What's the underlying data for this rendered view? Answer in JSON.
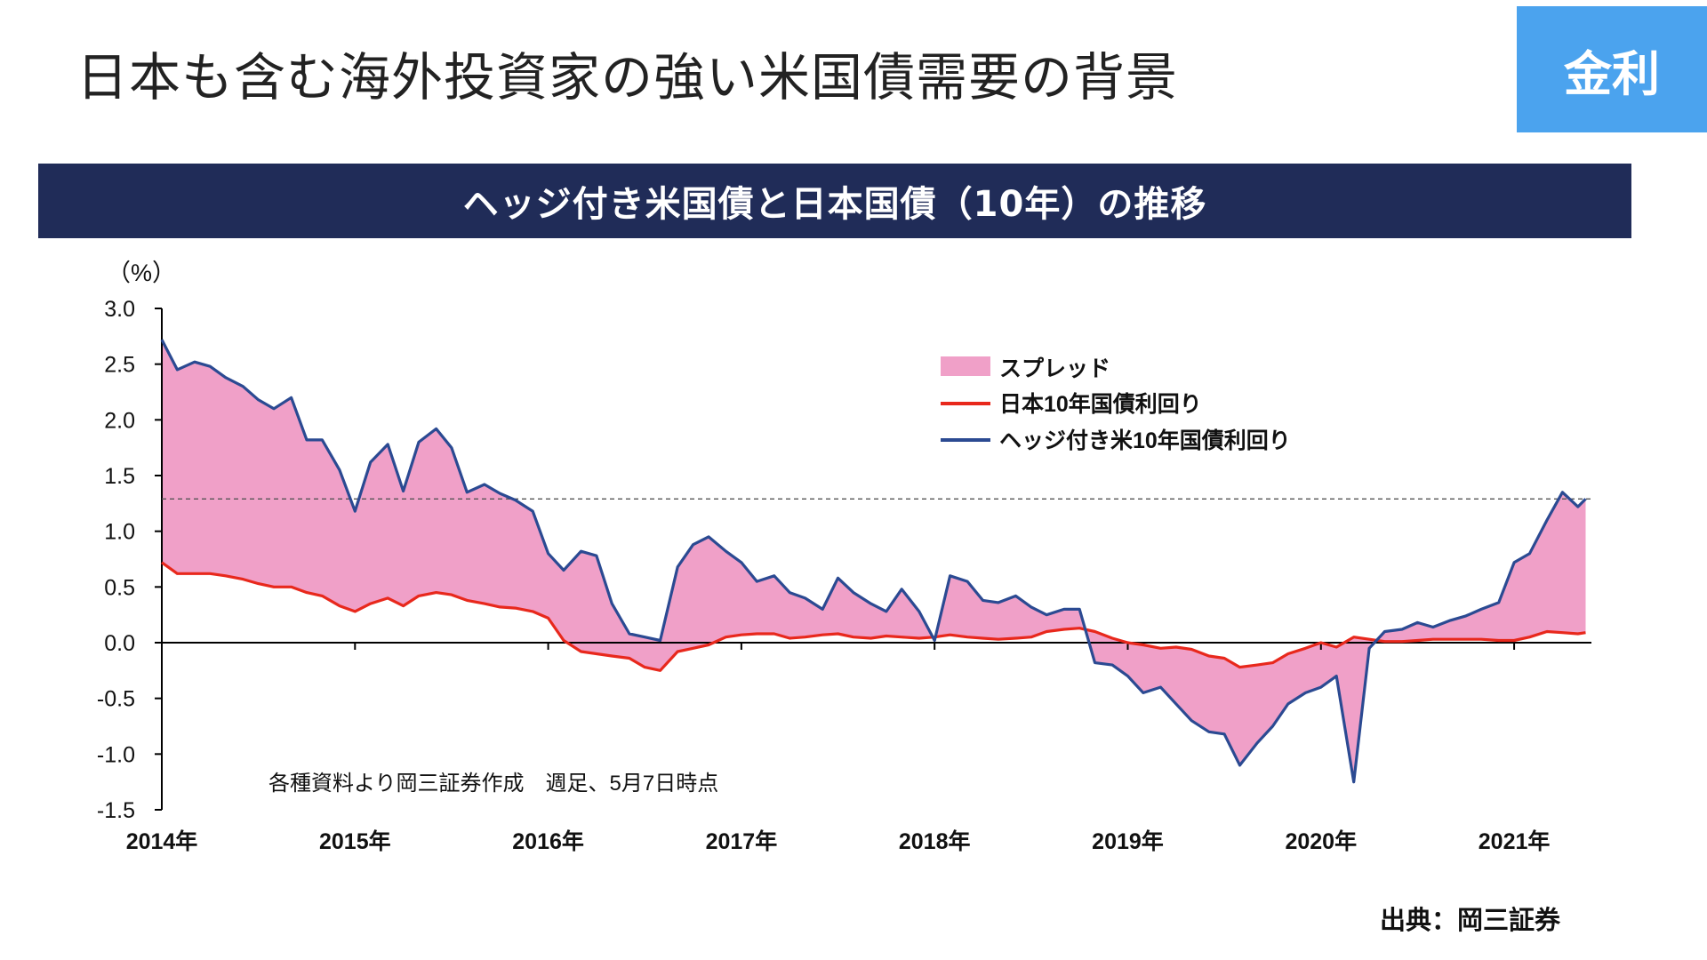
{
  "page": {
    "title": "日本も含む海外投資家の強い米国債需要の背景",
    "badge": "金利",
    "banner": "ヘッジ付き米国債と日本国債（10年）の推移",
    "source": "出典：岡三証券"
  },
  "colors": {
    "spread": "#f0a0c8",
    "japan": "#e8281c",
    "us_hedged": "#2b4a92",
    "banner_bg": "#202c58",
    "badge_bg": "#4ba3ee"
  },
  "chart_data": {
    "type": "area",
    "ylabel": "（%）",
    "note": "各種資料より岡三証券作成　週足、5月7日時点",
    "ylim": [
      -1.5,
      3.0
    ],
    "yticks": [
      "3.0",
      "2.5",
      "2.0",
      "1.5",
      "1.0",
      "0.5",
      "0.0",
      "-0.5",
      "-1.0",
      "-1.5"
    ],
    "xlim": [
      2014.0,
      2021.4
    ],
    "xticks": [
      "2014年",
      "2015年",
      "2016年",
      "2017年",
      "2018年",
      "2019年",
      "2020年",
      "2021年"
    ],
    "reference_line": 1.29,
    "legend": {
      "position": "top-right",
      "items": [
        "スプレッド",
        "日本10年国債利回り",
        "ヘッジ付き米10年国債利回り"
      ]
    },
    "x": [
      2014.0,
      2014.08,
      2014.17,
      2014.25,
      2014.33,
      2014.42,
      2014.5,
      2014.58,
      2014.67,
      2014.75,
      2014.83,
      2014.92,
      2015.0,
      2015.08,
      2015.17,
      2015.25,
      2015.33,
      2015.42,
      2015.5,
      2015.58,
      2015.67,
      2015.75,
      2015.83,
      2015.92,
      2016.0,
      2016.08,
      2016.17,
      2016.25,
      2016.33,
      2016.42,
      2016.5,
      2016.58,
      2016.67,
      2016.75,
      2016.83,
      2016.92,
      2017.0,
      2017.08,
      2017.17,
      2017.25,
      2017.33,
      2017.42,
      2017.5,
      2017.58,
      2017.67,
      2017.75,
      2017.83,
      2017.92,
      2018.0,
      2018.08,
      2018.17,
      2018.25,
      2018.33,
      2018.42,
      2018.5,
      2018.58,
      2018.67,
      2018.75,
      2018.83,
      2018.92,
      2019.0,
      2019.08,
      2019.17,
      2019.25,
      2019.33,
      2019.42,
      2019.5,
      2019.58,
      2019.67,
      2019.75,
      2019.83,
      2019.92,
      2020.0,
      2020.08,
      2020.17,
      2020.25,
      2020.33,
      2020.42,
      2020.5,
      2020.58,
      2020.67,
      2020.75,
      2020.83,
      2020.92,
      2021.0,
      2021.08,
      2021.17,
      2021.25,
      2021.33,
      2021.37
    ],
    "series": [
      {
        "name": "日本10年国債利回り",
        "values": [
          0.72,
          0.62,
          0.62,
          0.62,
          0.6,
          0.57,
          0.53,
          0.5,
          0.5,
          0.45,
          0.42,
          0.33,
          0.28,
          0.35,
          0.4,
          0.33,
          0.42,
          0.45,
          0.43,
          0.38,
          0.35,
          0.32,
          0.31,
          0.28,
          0.22,
          0.02,
          -0.08,
          -0.1,
          -0.12,
          -0.14,
          -0.22,
          -0.25,
          -0.08,
          -0.05,
          -0.02,
          0.05,
          0.07,
          0.08,
          0.08,
          0.04,
          0.05,
          0.07,
          0.08,
          0.05,
          0.04,
          0.06,
          0.05,
          0.04,
          0.05,
          0.07,
          0.05,
          0.04,
          0.03,
          0.04,
          0.05,
          0.1,
          0.12,
          0.13,
          0.1,
          0.04,
          0.0,
          -0.02,
          -0.05,
          -0.04,
          -0.06,
          -0.12,
          -0.14,
          -0.22,
          -0.2,
          -0.18,
          -0.1,
          -0.05,
          0.0,
          -0.04,
          0.05,
          0.03,
          0.01,
          0.01,
          0.02,
          0.03,
          0.03,
          0.03,
          0.03,
          0.02,
          0.02,
          0.05,
          0.1,
          0.09,
          0.08,
          0.09
        ]
      },
      {
        "name": "ヘッジ付き米10年国債利回り",
        "values": [
          2.72,
          2.45,
          2.52,
          2.48,
          2.38,
          2.3,
          2.18,
          2.1,
          2.2,
          1.82,
          1.82,
          1.55,
          1.18,
          1.62,
          1.78,
          1.36,
          1.8,
          1.92,
          1.75,
          1.35,
          1.42,
          1.34,
          1.28,
          1.18,
          0.8,
          0.65,
          0.82,
          0.78,
          0.35,
          0.08,
          0.05,
          0.02,
          0.68,
          0.88,
          0.95,
          0.82,
          0.72,
          0.55,
          0.6,
          0.45,
          0.4,
          0.3,
          0.58,
          0.45,
          0.35,
          0.28,
          0.48,
          0.28,
          0.02,
          0.6,
          0.55,
          0.38,
          0.36,
          0.42,
          0.32,
          0.25,
          0.3,
          0.3,
          -0.18,
          -0.2,
          -0.3,
          -0.45,
          -0.4,
          -0.55,
          -0.7,
          -0.8,
          -0.82,
          -1.1,
          -0.9,
          -0.75,
          -0.55,
          -0.45,
          -0.4,
          -0.3,
          -1.25,
          -0.05,
          0.1,
          0.12,
          0.18,
          0.14,
          0.2,
          0.24,
          0.3,
          0.36,
          0.72,
          0.8,
          1.1,
          1.35,
          1.22,
          1.29
        ]
      }
    ]
  }
}
